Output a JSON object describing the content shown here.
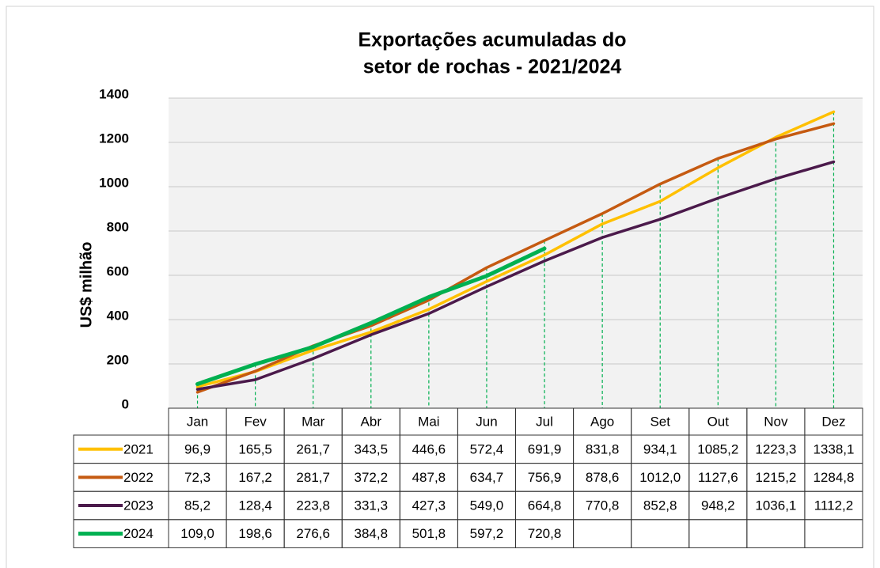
{
  "chart_data": {
    "type": "line",
    "title": [
      "Exportações acumuladas do",
      "setor de rochas - 2021/2024"
    ],
    "y_label": "US$ milhão",
    "categories": [
      "Jan",
      "Fev",
      "Mar",
      "Abr",
      "Mai",
      "Jun",
      "Jul",
      "Ago",
      "Set",
      "Out",
      "Nov",
      "Dez"
    ],
    "ylim": [
      0,
      1400
    ],
    "yticks": [
      0,
      200,
      400,
      600,
      800,
      1000,
      1200,
      1400
    ],
    "grid": true,
    "series": [
      {
        "name": "2021",
        "color": "#FFC000",
        "values": [
          96.9,
          165.5,
          261.7,
          343.5,
          446.6,
          572.4,
          691.9,
          831.8,
          934.1,
          1085.2,
          1223.3,
          1338.1
        ],
        "value_labels": [
          "96,9",
          "165,5",
          "261,7",
          "343,5",
          "446,6",
          "572,4",
          "691,9",
          "831,8",
          "934,1",
          "1085,2",
          "1223,3",
          "1338,1"
        ]
      },
      {
        "name": "2022",
        "color": "#C55A11",
        "values": [
          72.3,
          167.2,
          281.7,
          372.2,
          487.8,
          634.7,
          756.9,
          878.6,
          1012.0,
          1127.6,
          1215.2,
          1284.8
        ],
        "value_labels": [
          "72,3",
          "167,2",
          "281,7",
          "372,2",
          "487,8",
          "634,7",
          "756,9",
          "878,6",
          "1012,0",
          "1127,6",
          "1215,2",
          "1284,8"
        ]
      },
      {
        "name": "2023",
        "color": "#4B1A4B",
        "values": [
          85.2,
          128.4,
          223.8,
          331.3,
          427.3,
          549.0,
          664.8,
          770.8,
          852.8,
          948.2,
          1036.1,
          1112.2
        ],
        "value_labels": [
          "85,2",
          "128,4",
          "223,8",
          "331,3",
          "427,3",
          "549,0",
          "664,8",
          "770,8",
          "852,8",
          "948,2",
          "1036,1",
          "1112,2"
        ]
      },
      {
        "name": "2024",
        "color": "#00B050",
        "values": [
          109.0,
          198.6,
          276.6,
          384.8,
          501.8,
          597.2,
          720.8,
          null,
          null,
          null,
          null,
          null
        ],
        "value_labels": [
          "109,0",
          "198,6",
          "276,6",
          "384,8",
          "501,8",
          "597,2",
          "720,8",
          null,
          null,
          null,
          null,
          null
        ]
      }
    ]
  }
}
